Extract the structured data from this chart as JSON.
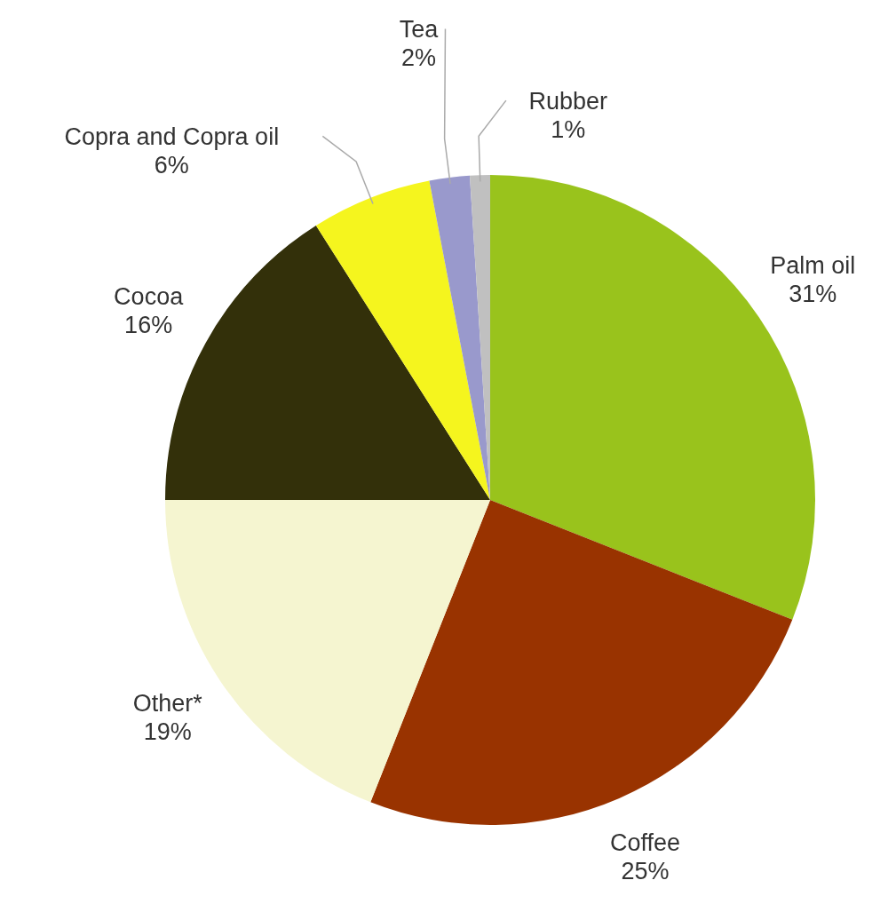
{
  "chart_data": {
    "type": "pie",
    "categories": [
      "Palm oil",
      "Coffee",
      "Other*",
      "Cocoa",
      "Copra and Copra oil",
      "Tea",
      "Rubber"
    ],
    "values": [
      31,
      25,
      19,
      16,
      6,
      2,
      1
    ],
    "value_labels": [
      "31%",
      "25%",
      "19%",
      "16%",
      "6%",
      "2%",
      "1%"
    ],
    "colors": [
      "#99c31c",
      "#993300",
      "#f5f5d0",
      "#33300a",
      "#f5f51e",
      "#9999cc",
      "#c0c0c0"
    ]
  }
}
